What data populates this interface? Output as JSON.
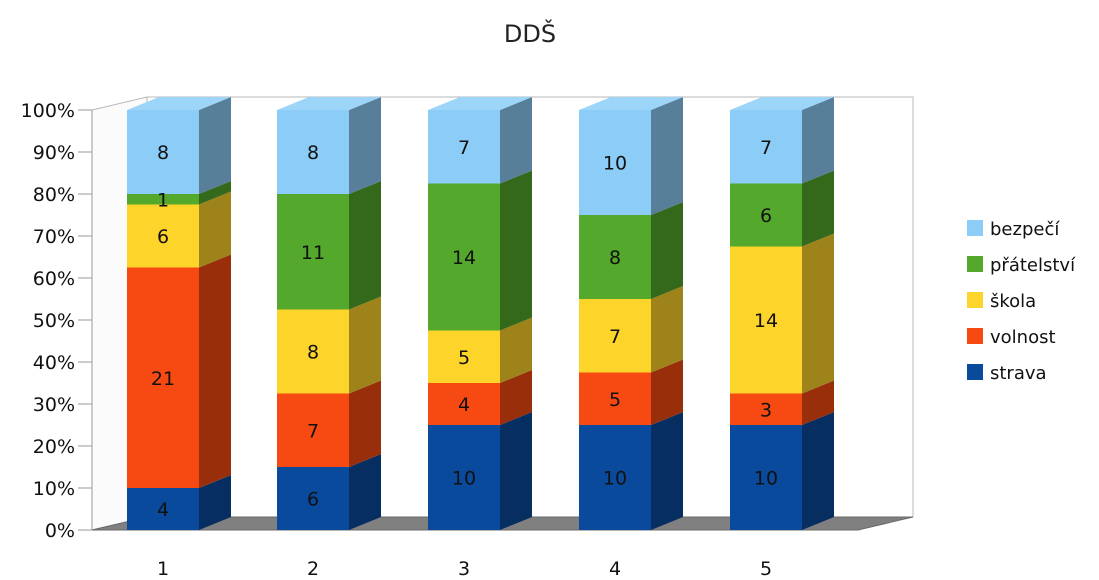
{
  "chart_data": {
    "type": "bar",
    "stacked": "percent",
    "title": "DDŠ",
    "xlabel": "",
    "ylabel": "",
    "ylim": [
      0,
      100
    ],
    "yticks": [
      "0%",
      "10%",
      "20%",
      "30%",
      "40%",
      "50%",
      "60%",
      "70%",
      "80%",
      "90%",
      "100%"
    ],
    "categories": [
      "1",
      "2",
      "3",
      "4",
      "5"
    ],
    "series": [
      {
        "name": "strava",
        "values": [
          4,
          6,
          10,
          10,
          10
        ],
        "color": "#0a4a9c"
      },
      {
        "name": "volnost",
        "values": [
          21,
          7,
          4,
          5,
          3
        ],
        "color": "#f74a12"
      },
      {
        "name": "škola",
        "values": [
          6,
          8,
          5,
          7,
          14
        ],
        "color": "#fdd42a"
      },
      {
        "name": "přátelství",
        "values": [
          1,
          11,
          14,
          8,
          6
        ],
        "color": "#54a82c"
      },
      {
        "name": "bezpečí",
        "values": [
          8,
          8,
          7,
          10,
          7
        ],
        "color": "#8ccdf7"
      }
    ],
    "legend_position": "right",
    "grid": false,
    "style": "3d"
  }
}
